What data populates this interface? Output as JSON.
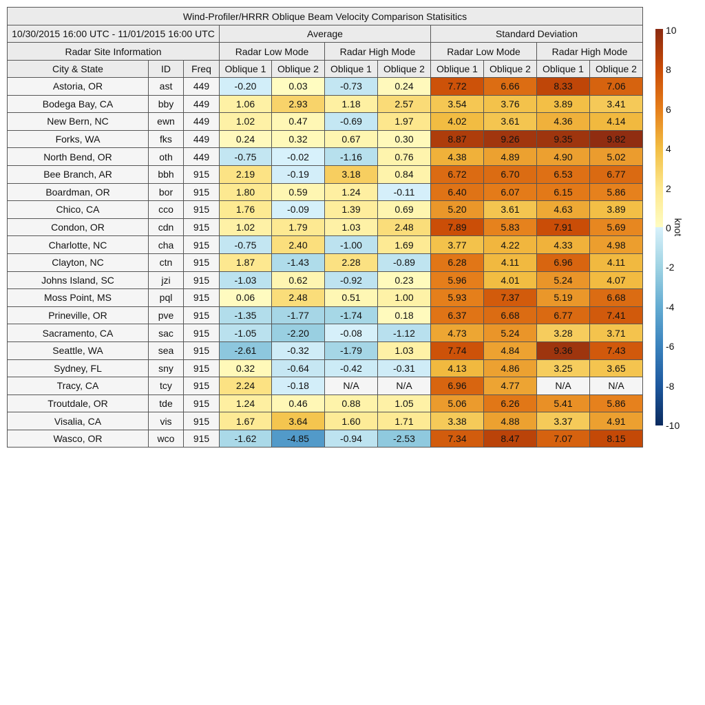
{
  "chart_data": {
    "type": "table",
    "title": "Wind-Profiler/HRRR Oblique Beam Velocity Comparison Statisitics",
    "date_range": "10/30/2015 16:00 UTC - 11/01/2015 16:00 UTC",
    "groups": [
      "Average",
      "Standard Deviation"
    ],
    "site_info_label": "Radar Site Information",
    "modes": [
      "Radar Low Mode",
      "Radar High Mode",
      "Radar Low Mode",
      "Radar High Mode"
    ],
    "columns": [
      "City & State",
      "ID",
      "Freq",
      "Oblique 1",
      "Oblique 2",
      "Oblique 1",
      "Oblique 2",
      "Oblique 1",
      "Oblique 2",
      "Oblique 1",
      "Oblique 2"
    ],
    "rows": [
      [
        "Astoria, OR",
        "ast",
        "449",
        "-0.20",
        "0.03",
        "-0.73",
        "0.24",
        "7.72",
        "6.66",
        "8.33",
        "7.06"
      ],
      [
        "Bodega Bay, CA",
        "bby",
        "449",
        "1.06",
        "2.93",
        "1.18",
        "2.57",
        "3.54",
        "3.76",
        "3.89",
        "3.41"
      ],
      [
        "New Bern, NC",
        "ewn",
        "449",
        "1.02",
        "0.47",
        "-0.69",
        "1.97",
        "4.02",
        "3.61",
        "4.36",
        "4.14"
      ],
      [
        "Forks, WA",
        "fks",
        "449",
        "0.24",
        "0.32",
        "0.67",
        "0.30",
        "8.87",
        "9.26",
        "9.35",
        "9.82"
      ],
      [
        "North Bend, OR",
        "oth",
        "449",
        "-0.75",
        "-0.02",
        "-1.16",
        "0.76",
        "4.38",
        "4.89",
        "4.90",
        "5.02"
      ],
      [
        "Bee Branch, AR",
        "bbh",
        "915",
        "2.19",
        "-0.19",
        "3.18",
        "0.84",
        "6.72",
        "6.70",
        "6.53",
        "6.77"
      ],
      [
        "Boardman, OR",
        "bor",
        "915",
        "1.80",
        "0.59",
        "1.24",
        "-0.11",
        "6.40",
        "6.07",
        "6.15",
        "5.86"
      ],
      [
        "Chico, CA",
        "cco",
        "915",
        "1.76",
        "-0.09",
        "1.39",
        "0.69",
        "5.20",
        "3.61",
        "4.63",
        "3.89"
      ],
      [
        "Condon, OR",
        "cdn",
        "915",
        "1.02",
        "1.79",
        "1.03",
        "2.48",
        "7.89",
        "5.83",
        "7.91",
        "5.69"
      ],
      [
        "Charlotte, NC",
        "cha",
        "915",
        "-0.75",
        "2.40",
        "-1.00",
        "1.69",
        "3.77",
        "4.22",
        "4.33",
        "4.98"
      ],
      [
        "Clayton, NC",
        "ctn",
        "915",
        "1.87",
        "-1.43",
        "2.28",
        "-0.89",
        "6.28",
        "4.11",
        "6.96",
        "4.11"
      ],
      [
        "Johns Island, SC",
        "jzi",
        "915",
        "-1.03",
        "0.62",
        "-0.92",
        "0.23",
        "5.96",
        "4.01",
        "5.24",
        "4.07"
      ],
      [
        "Moss Point, MS",
        "pql",
        "915",
        "0.06",
        "2.48",
        "0.51",
        "1.00",
        "5.93",
        "7.37",
        "5.19",
        "6.68"
      ],
      [
        "Prineville, OR",
        "pve",
        "915",
        "-1.35",
        "-1.77",
        "-1.74",
        "0.18",
        "6.37",
        "6.68",
        "6.77",
        "7.41"
      ],
      [
        "Sacramento, CA",
        "sac",
        "915",
        "-1.05",
        "-2.20",
        "-0.08",
        "-1.12",
        "4.73",
        "5.24",
        "3.28",
        "3.71"
      ],
      [
        "Seattle, WA",
        "sea",
        "915",
        "-2.61",
        "-0.32",
        "-1.79",
        "1.03",
        "7.74",
        "4.84",
        "9.36",
        "7.43"
      ],
      [
        "Sydney, FL",
        "sny",
        "915",
        "0.32",
        "-0.64",
        "-0.42",
        "-0.31",
        "4.13",
        "4.86",
        "3.25",
        "3.65"
      ],
      [
        "Tracy, CA",
        "tcy",
        "915",
        "2.24",
        "-0.18",
        "N/A",
        "N/A",
        "6.96",
        "4.77",
        "N/A",
        "N/A"
      ],
      [
        "Troutdale, OR",
        "tde",
        "915",
        "1.24",
        "0.46",
        "0.88",
        "1.05",
        "5.06",
        "6.26",
        "5.41",
        "5.86"
      ],
      [
        "Visalia, CA",
        "vis",
        "915",
        "1.67",
        "3.64",
        "1.60",
        "1.71",
        "3.38",
        "4.88",
        "3.37",
        "4.91"
      ],
      [
        "Wasco, OR",
        "wco",
        "915",
        "-1.62",
        "-4.85",
        "-0.94",
        "-2.53",
        "7.34",
        "8.47",
        "7.07",
        "8.15"
      ]
    ],
    "colorbar": {
      "label": "knot",
      "range": [
        -10,
        10
      ],
      "ticks": [
        "10",
        "8",
        "6",
        "4",
        "2",
        "0",
        "-2",
        "-4",
        "-6",
        "-8",
        "-10"
      ],
      "stops": [
        [
          -10,
          "#0a2a5e"
        ],
        [
          -8,
          "#1d589e"
        ],
        [
          -6,
          "#3a82bd"
        ],
        [
          -4,
          "#64acd2"
        ],
        [
          -2,
          "#9fd3e3"
        ],
        [
          -0.001,
          "#d8f1fb"
        ],
        [
          0,
          "#fffcc2"
        ],
        [
          2,
          "#fde78c"
        ],
        [
          4,
          "#f2bd42"
        ],
        [
          6,
          "#e57d1a"
        ],
        [
          8,
          "#c94b06"
        ],
        [
          10,
          "#8a2a12"
        ]
      ],
      "na_color": "#f5f5f5"
    }
  }
}
